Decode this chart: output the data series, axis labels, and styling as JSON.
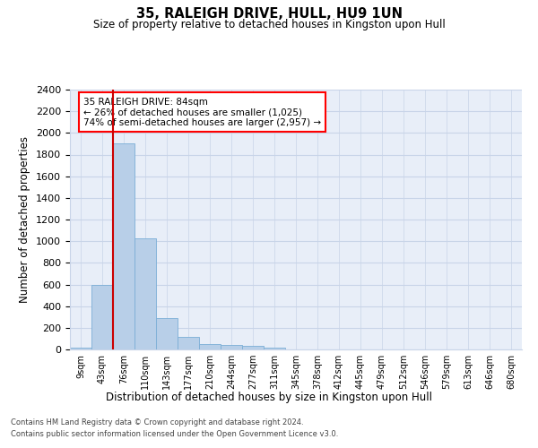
{
  "title": "35, RALEIGH DRIVE, HULL, HU9 1UN",
  "subtitle": "Size of property relative to detached houses in Kingston upon Hull",
  "xlabel": "Distribution of detached houses by size in Kingston upon Hull",
  "ylabel": "Number of detached properties",
  "bin_labels": [
    "9sqm",
    "43sqm",
    "76sqm",
    "110sqm",
    "143sqm",
    "177sqm",
    "210sqm",
    "244sqm",
    "277sqm",
    "311sqm",
    "345sqm",
    "378sqm",
    "412sqm",
    "445sqm",
    "479sqm",
    "512sqm",
    "546sqm",
    "579sqm",
    "613sqm",
    "646sqm",
    "680sqm"
  ],
  "bar_values": [
    20,
    600,
    1900,
    1030,
    290,
    120,
    50,
    40,
    30,
    20,
    0,
    0,
    0,
    0,
    0,
    0,
    0,
    0,
    0,
    0,
    0
  ],
  "bar_color": "#b8cfe8",
  "bar_edge_color": "#7baed6",
  "grid_color": "#c8d4e8",
  "background_color": "#e8eef8",
  "ylim": [
    0,
    2400
  ],
  "red_line_color": "#cc0000",
  "annotation_line1": "35 RALEIGH DRIVE: 84sqm",
  "annotation_line2": "← 26% of detached houses are smaller (1,025)",
  "annotation_line3": "74% of semi-detached houses are larger (2,957) →",
  "footer_line1": "Contains HM Land Registry data © Crown copyright and database right 2024.",
  "footer_line2": "Contains public sector information licensed under the Open Government Licence v3.0."
}
